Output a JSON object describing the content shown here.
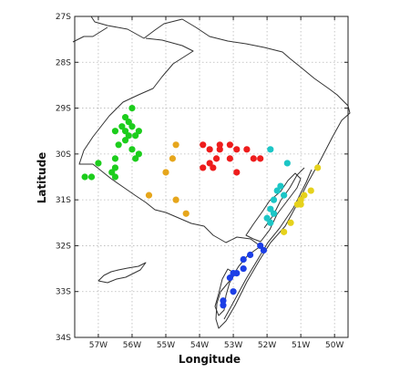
{
  "map": {
    "xlabel": "Longitude",
    "ylabel": "Latitude",
    "lon_range": [
      -57.7,
      -49.6
    ],
    "lat_range": [
      -34.0,
      -27.0
    ],
    "lon_ticks": [
      {
        "v": -57,
        "label": "57W"
      },
      {
        "v": -56,
        "label": "56W"
      },
      {
        "v": -55,
        "label": "55W"
      },
      {
        "v": -54,
        "label": "54W"
      },
      {
        "v": -53,
        "label": "53W"
      },
      {
        "v": -52,
        "label": "52W"
      },
      {
        "v": -51,
        "label": "51W"
      },
      {
        "v": -50,
        "label": "50W"
      }
    ],
    "lat_ticks": [
      {
        "v": -27,
        "label": "27S"
      },
      {
        "v": -28,
        "label": "28S"
      },
      {
        "v": -29,
        "label": "29S"
      },
      {
        "v": -30,
        "label": "30S"
      },
      {
        "v": -31,
        "label": "31S"
      },
      {
        "v": -32,
        "label": "32S"
      },
      {
        "v": -33,
        "label": "33S"
      },
      {
        "v": -34,
        "label": "34S"
      }
    ],
    "grid": true,
    "colors": {
      "green": "#1ccd1c",
      "red": "#ee1c1c",
      "orange": "#e6a61c",
      "cyan": "#1cc6c6",
      "blue": "#1c3ee6",
      "yellow": "#e6d21c",
      "coast": "#333333",
      "grid": "#b8b8b8"
    },
    "groups": [
      {
        "color": "green",
        "points": [
          [
            -56.0,
            -29.0
          ],
          [
            -56.2,
            -29.2
          ],
          [
            -56.1,
            -29.3
          ],
          [
            -56.0,
            -29.4
          ],
          [
            -55.8,
            -29.5
          ],
          [
            -56.3,
            -29.4
          ],
          [
            -56.2,
            -29.5
          ],
          [
            -56.5,
            -29.5
          ],
          [
            -56.1,
            -29.6
          ],
          [
            -55.9,
            -29.6
          ],
          [
            -56.2,
            -29.7
          ],
          [
            -56.4,
            -29.8
          ],
          [
            -56.0,
            -29.9
          ],
          [
            -55.8,
            -30.0
          ],
          [
            -55.9,
            -30.1
          ],
          [
            -56.5,
            -30.1
          ],
          [
            -56.5,
            -30.3
          ],
          [
            -57.0,
            -30.2
          ],
          [
            -56.6,
            -30.4
          ],
          [
            -57.2,
            -30.5
          ],
          [
            -57.4,
            -30.5
          ],
          [
            -56.5,
            -30.5
          ]
        ]
      },
      {
        "color": "red",
        "points": [
          [
            -53.9,
            -29.8
          ],
          [
            -53.7,
            -29.9
          ],
          [
            -53.4,
            -29.8
          ],
          [
            -53.4,
            -29.9
          ],
          [
            -53.1,
            -29.8
          ],
          [
            -52.9,
            -29.9
          ],
          [
            -52.6,
            -29.9
          ],
          [
            -53.7,
            -30.2
          ],
          [
            -53.5,
            -30.1
          ],
          [
            -53.1,
            -30.1
          ],
          [
            -52.4,
            -30.1
          ],
          [
            -52.2,
            -30.1
          ],
          [
            -53.9,
            -30.3
          ],
          [
            -53.6,
            -30.3
          ],
          [
            -52.9,
            -30.4
          ]
        ]
      },
      {
        "color": "orange",
        "points": [
          [
            -54.7,
            -29.8
          ],
          [
            -54.8,
            -30.1
          ],
          [
            -55.0,
            -30.4
          ],
          [
            -55.5,
            -30.9
          ],
          [
            -54.7,
            -31.0
          ],
          [
            -54.4,
            -31.3
          ]
        ]
      },
      {
        "color": "cyan",
        "points": [
          [
            -51.9,
            -29.9
          ],
          [
            -51.4,
            -30.2
          ],
          [
            -51.6,
            -30.7
          ],
          [
            -51.7,
            -30.8
          ],
          [
            -51.5,
            -30.9
          ],
          [
            -51.8,
            -31.0
          ],
          [
            -51.9,
            -31.2
          ],
          [
            -51.8,
            -31.3
          ],
          [
            -52.0,
            -31.4
          ],
          [
            -51.9,
            -31.5
          ]
        ]
      },
      {
        "color": "blue",
        "points": [
          [
            -52.2,
            -32.0
          ],
          [
            -52.1,
            -32.1
          ],
          [
            -52.5,
            -32.2
          ],
          [
            -52.7,
            -32.3
          ],
          [
            -52.7,
            -32.5
          ],
          [
            -52.9,
            -32.6
          ],
          [
            -53.0,
            -32.6
          ],
          [
            -53.1,
            -32.7
          ],
          [
            -53.0,
            -33.0
          ],
          [
            -53.3,
            -33.2
          ],
          [
            -53.3,
            -33.3
          ]
        ]
      },
      {
        "color": "yellow",
        "points": [
          [
            -50.5,
            -30.3
          ],
          [
            -50.7,
            -30.8
          ],
          [
            -50.9,
            -30.9
          ],
          [
            -51.0,
            -31.0
          ],
          [
            -51.1,
            -31.1
          ],
          [
            -51.0,
            -31.1
          ],
          [
            -51.3,
            -31.5
          ],
          [
            -51.5,
            -31.7
          ]
        ]
      }
    ]
  }
}
